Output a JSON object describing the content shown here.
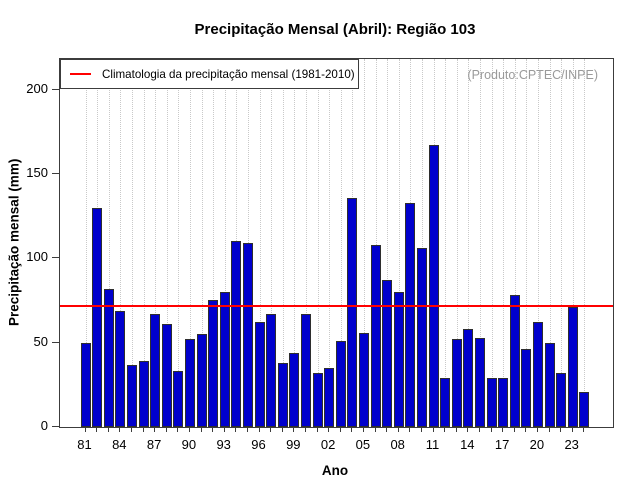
{
  "title": "Precipitação Mensal (Abril): Região 103",
  "watermark": "(Produto:CPTEC/INPE)",
  "legend": {
    "label": "Climatologia da precipitação mensal (1981-2010)",
    "line_color": "#ff0000"
  },
  "chart_data": {
    "type": "bar",
    "title": "Precipitação Mensal (Abril): Região 103",
    "xlabel": "Ano",
    "ylabel": "Precipitação mensal (mm)",
    "ylim": [
      0,
      218
    ],
    "yticks": [
      0,
      50,
      100,
      150,
      200
    ],
    "xtick_step": 3,
    "xtick_labels": [
      "81",
      "84",
      "87",
      "90",
      "93",
      "96",
      "99",
      "02",
      "05",
      "08",
      "11",
      "14",
      "17",
      "20",
      "23"
    ],
    "grid": "vertical-dotted",
    "legend_position": "top-left",
    "bar_color": "#0000CD",
    "bar_border_color": "#2e2e2e",
    "climatology_value": 71.7,
    "climatology_color": "#ff0000",
    "years": [
      1981,
      1982,
      1983,
      1984,
      1985,
      1986,
      1987,
      1988,
      1989,
      1990,
      1991,
      1992,
      1993,
      1994,
      1995,
      1996,
      1997,
      1998,
      1999,
      2000,
      2001,
      2002,
      2003,
      2004,
      2005,
      2006,
      2007,
      2008,
      2009,
      2010,
      2011,
      2012,
      2013,
      2014,
      2015,
      2016,
      2017,
      2018,
      2019,
      2020,
      2021,
      2022,
      2023,
      2024
    ],
    "values": [
      50,
      130,
      82,
      69,
      37,
      39,
      67,
      61,
      33,
      52,
      55,
      75,
      80,
      110,
      109,
      62,
      67,
      38,
      44,
      67,
      32,
      35,
      51,
      136,
      56,
      108,
      87,
      80,
      133,
      106,
      167,
      29,
      52,
      58,
      53,
      29,
      29,
      78,
      46,
      62,
      50,
      32,
      71,
      21
    ]
  }
}
